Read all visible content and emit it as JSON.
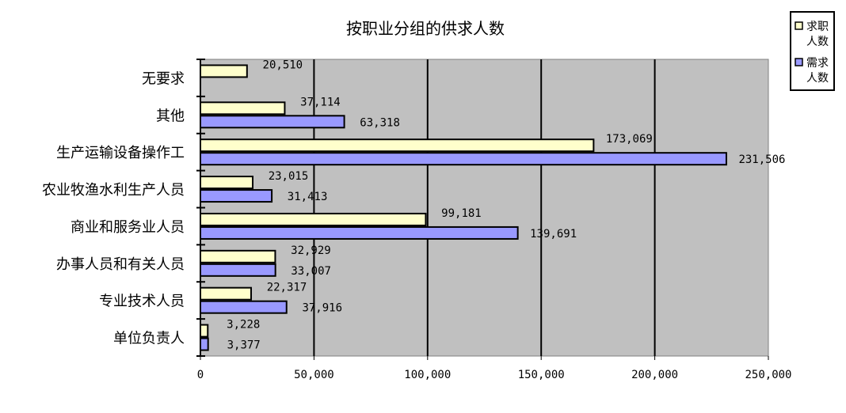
{
  "chart_data": {
    "type": "bar",
    "orientation": "horizontal",
    "title": "按职业分组的供求人数",
    "categories": [
      "单位负责人",
      "专业技术人员",
      "办事人员和有关人员",
      "商业和服务业人员",
      "农业牧渔水利生产人员",
      "生产运输设备操作工",
      "其他",
      "无要求"
    ],
    "series": [
      {
        "name": "求职人数",
        "name_lines": [
          "求职",
          "人数"
        ],
        "color": "#FFFFCC",
        "values": [
          3228,
          22317,
          32929,
          99181,
          23015,
          173069,
          37114,
          20510
        ],
        "labels": [
          "3,228",
          "22,317",
          "32,929",
          "99,181",
          "23,015",
          "173,069",
          "37,114",
          "20,510"
        ]
      },
      {
        "name": "需求人数",
        "name_lines": [
          "需求",
          "人数"
        ],
        "color": "#9999FF",
        "values": [
          3377,
          37916,
          33007,
          139691,
          31413,
          231506,
          63318,
          null
        ],
        "labels": [
          "3,377",
          "37,916",
          "33,007",
          "139,691",
          "31,413",
          "231,506",
          "63,318",
          null
        ]
      }
    ],
    "xlim": [
      0,
      250000
    ],
    "xticks": [
      0,
      50000,
      100000,
      150000,
      200000,
      250000
    ],
    "xtick_labels": [
      "0",
      "50,000",
      "100,000",
      "150,000",
      "200,000",
      "250,000"
    ],
    "plot_background": "#C0C0C0",
    "grid": "vertical major gridlines",
    "legend_placement": "top-right"
  }
}
